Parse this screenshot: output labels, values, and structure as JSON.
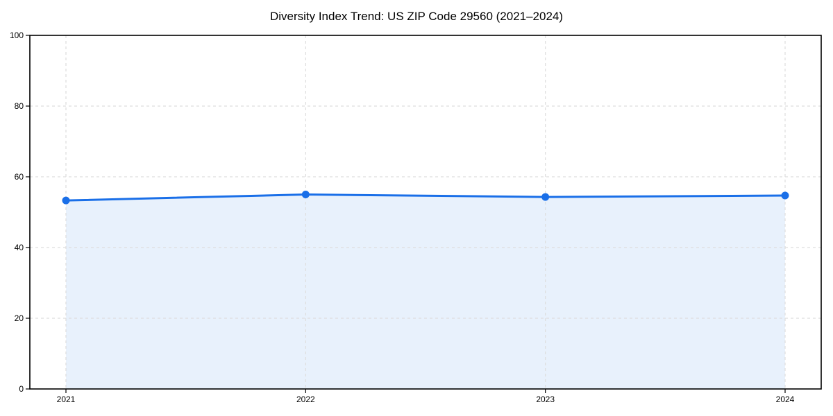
{
  "chart_data": {
    "type": "area",
    "title": "Diversity Index Trend: US ZIP Code 29560 (2021–2024)",
    "xlabel": "",
    "ylabel": "",
    "categories": [
      "2021",
      "2022",
      "2023",
      "2024"
    ],
    "series": [
      {
        "name": "Diversity Index",
        "values": [
          53.3,
          55.0,
          54.3,
          54.7
        ]
      }
    ],
    "ylim": [
      0,
      100
    ],
    "yticks": [
      0,
      20,
      40,
      60,
      80,
      100
    ],
    "grid": true,
    "grid_style": "dashed",
    "legend_position": "none",
    "marker": "circle",
    "colors": {
      "line": "#1a6fe8",
      "marker": "#1a6fe8",
      "fill": "#e8f1fc",
      "grid": "#dddddd",
      "axis": "#000000",
      "text": "#000000",
      "background": "#ffffff"
    }
  }
}
